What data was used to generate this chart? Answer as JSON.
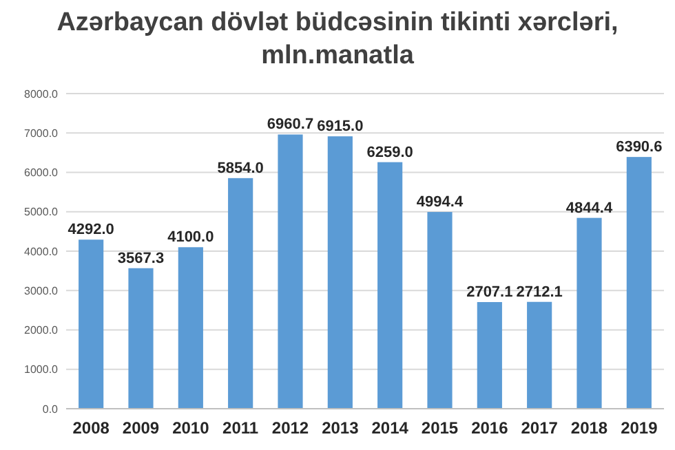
{
  "chart_data": {
    "type": "bar",
    "title": "Azərbaycan dövlət büdcəsinin tikinti xərcləri,\nmln.manatla",
    "categories": [
      "2008",
      "2009",
      "2010",
      "2011",
      "2012",
      "2013",
      "2014",
      "2015",
      "2016",
      "2017",
      "2018",
      "2019"
    ],
    "values": [
      4292.0,
      3567.3,
      4100.0,
      5854.0,
      6960.7,
      6915.0,
      6259.0,
      4994.4,
      2707.1,
      2712.1,
      4844.4,
      6390.6
    ],
    "value_labels": [
      "4292.0",
      "3567.3",
      "4100.0",
      "5854.0",
      "6960.7",
      "6915.0",
      "6259.0",
      "4994.4",
      "2707.1",
      "2712.1",
      "4844.4",
      "6390.6"
    ],
    "color": "#5b9bd5",
    "ylim": [
      0,
      8000
    ],
    "yticks": [
      {
        "value": 0,
        "label": "0.0"
      },
      {
        "value": 1000,
        "label": "1000.0"
      },
      {
        "value": 2000,
        "label": "2000.0"
      },
      {
        "value": 3000,
        "label": "3000.0"
      },
      {
        "value": 4000,
        "label": "4000.0"
      },
      {
        "value": 5000,
        "label": "5000.0"
      },
      {
        "value": 6000,
        "label": "6000.0"
      },
      {
        "value": 7000,
        "label": "7000.0"
      },
      {
        "value": 8000,
        "label": "8000.0"
      }
    ],
    "grid": "y"
  }
}
